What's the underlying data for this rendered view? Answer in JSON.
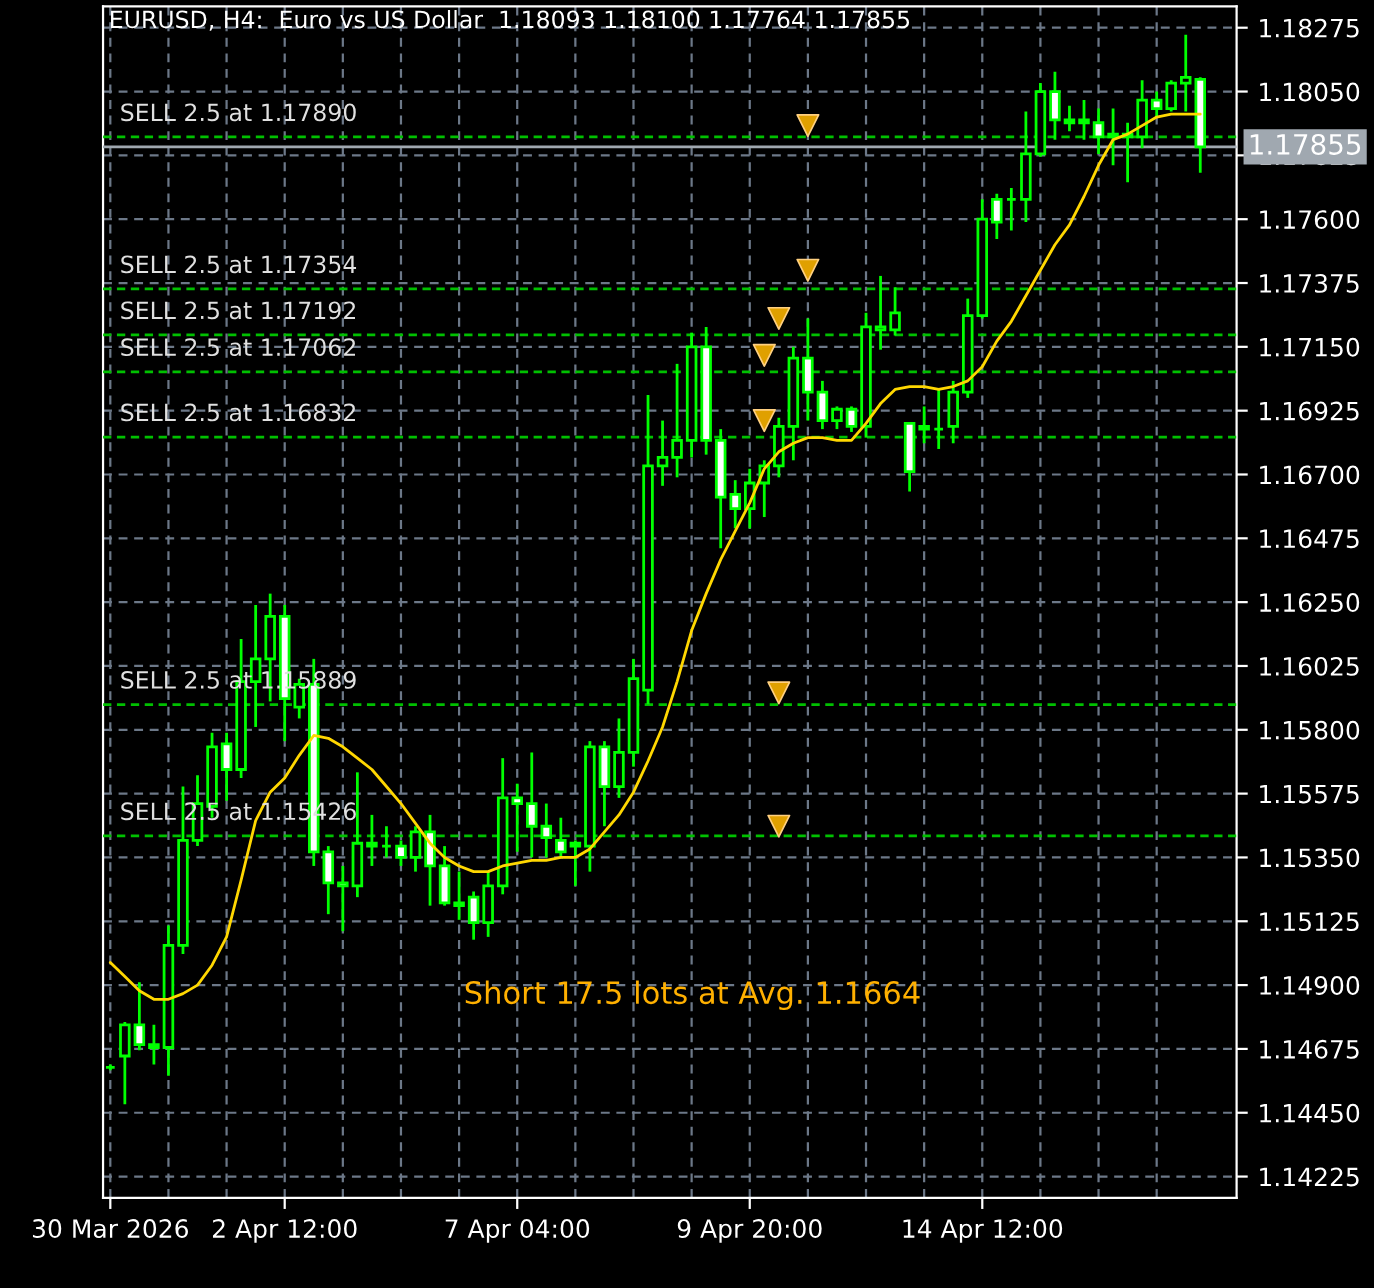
{
  "chart_data": {
    "type": "candlestick",
    "title": "EURUSD, H4:  Euro vs US Dollar  1.18093 1.18100 1.17764 1.17855",
    "categories": [
      "30 Mar 2026",
      null,
      null,
      null,
      null,
      null,
      null,
      null,
      null,
      null,
      null,
      null,
      "2 Apr 12:00",
      null,
      null,
      null,
      null,
      null,
      null,
      null,
      null,
      null,
      null,
      null,
      null,
      null,
      null,
      null,
      "7 Apr 04:00",
      null,
      null,
      null,
      null,
      null,
      null,
      null,
      null,
      null,
      null,
      null,
      null,
      null,
      null,
      null,
      "9 Apr 20:00",
      null,
      null,
      null,
      null,
      null,
      null,
      null,
      null,
      null,
      null,
      null,
      null,
      null,
      null,
      null,
      "14 Apr 12:00",
      null,
      null,
      null,
      null,
      null,
      null,
      null,
      null,
      null,
      null,
      null,
      null,
      null,
      null,
      null
    ],
    "color": "#00ff00",
    "ohlc": [
      [
        1.1461,
        1.1462,
        1.146,
        1.1461
      ],
      [
        1.1465,
        1.1477,
        1.1448,
        1.1476
      ],
      [
        1.1476,
        1.1491,
        1.1467,
        1.1469
      ],
      [
        1.1469,
        1.1476,
        1.1462,
        1.1468
      ],
      [
        1.1468,
        1.1511,
        1.1458,
        1.1504
      ],
      [
        1.1504,
        1.156,
        1.1501,
        1.1541
      ],
      [
        1.1541,
        1.1564,
        1.1539,
        1.1554
      ],
      [
        1.1553,
        1.1579,
        1.1549,
        1.1574
      ],
      [
        1.1575,
        1.1579,
        1.1555,
        1.1566
      ],
      [
        1.1566,
        1.1612,
        1.1563,
        1.1597
      ],
      [
        1.1597,
        1.1624,
        1.1581,
        1.1605
      ],
      [
        1.1605,
        1.1628,
        1.159,
        1.162
      ],
      [
        1.162,
        1.1624,
        1.1576,
        1.1591
      ],
      [
        1.1588,
        1.1598,
        1.1584,
        1.1596
      ],
      [
        1.1596,
        1.1605,
        1.1532,
        1.1537
      ],
      [
        1.1537,
        1.1539,
        1.1515,
        1.1526
      ],
      [
        1.1526,
        1.1532,
        1.1509,
        1.1525
      ],
      [
        1.1525,
        1.1565,
        1.1521,
        1.154
      ],
      [
        1.154,
        1.155,
        1.1532,
        1.1539
      ],
      [
        1.1539,
        1.1546,
        1.1535,
        1.1539
      ],
      [
        1.1539,
        1.1541,
        1.1532,
        1.1535
      ],
      [
        1.1535,
        1.1546,
        1.153,
        1.1544
      ],
      [
        1.1544,
        1.155,
        1.1518,
        1.1532
      ],
      [
        1.1532,
        1.1539,
        1.1518,
        1.1519
      ],
      [
        1.1519,
        1.153,
        1.1513,
        1.1518
      ],
      [
        1.1521,
        1.1523,
        1.1506,
        1.1512
      ],
      [
        1.1512,
        1.153,
        1.1507,
        1.1525
      ],
      [
        1.1525,
        1.157,
        1.1522,
        1.1556
      ],
      [
        1.1556,
        1.1561,
        1.1537,
        1.1554
      ],
      [
        1.1554,
        1.1572,
        1.1535,
        1.1546
      ],
      [
        1.1546,
        1.1554,
        1.1535,
        1.1542
      ],
      [
        1.1541,
        1.1549,
        1.1535,
        1.1537
      ],
      [
        1.1539,
        1.1541,
        1.1525,
        1.154
      ],
      [
        1.1539,
        1.1576,
        1.153,
        1.1574
      ],
      [
        1.1574,
        1.1576,
        1.1546,
        1.156
      ],
      [
        1.156,
        1.1584,
        1.1556,
        1.1572
      ],
      [
        1.1572,
        1.1605,
        1.1567,
        1.1598
      ],
      [
        1.1594,
        1.1698,
        1.1589,
        1.1673
      ],
      [
        1.1673,
        1.1689,
        1.1666,
        1.1676
      ],
      [
        1.1676,
        1.1709,
        1.1669,
        1.1682
      ],
      [
        1.1682,
        1.172,
        1.1676,
        1.1715
      ],
      [
        1.1715,
        1.1722,
        1.1677,
        1.1682
      ],
      [
        1.1682,
        1.1686,
        1.1644,
        1.1662
      ],
      [
        1.1663,
        1.1668,
        1.1651,
        1.1658
      ],
      [
        1.1658,
        1.1672,
        1.1651,
        1.1667
      ],
      [
        1.1667,
        1.1675,
        1.1655,
        1.1673
      ],
      [
        1.1673,
        1.169,
        1.1669,
        1.1687
      ],
      [
        1.1687,
        1.1715,
        1.1675,
        1.1711
      ],
      [
        1.1711,
        1.1725,
        1.1689,
        1.1699
      ],
      [
        1.1699,
        1.1703,
        1.1686,
        1.1689
      ],
      [
        1.1689,
        1.1694,
        1.1686,
        1.1693
      ],
      [
        1.1693,
        1.1694,
        1.1685,
        1.1687
      ],
      [
        1.1687,
        1.1727,
        1.1683,
        1.1722
      ],
      [
        1.1721,
        1.174,
        1.1714,
        1.1722
      ],
      [
        1.1721,
        1.1736,
        1.1719,
        1.1727
      ],
      [
        1.1688,
        1.1688,
        1.1664,
        1.1671
      ],
      [
        1.1687,
        1.1694,
        1.1681,
        1.1686
      ],
      [
        1.1686,
        1.17,
        1.1679,
        1.1686
      ],
      [
        1.1687,
        1.1703,
        1.1681,
        1.1699
      ],
      [
        1.1699,
        1.1732,
        1.1697,
        1.1726
      ],
      [
        1.1726,
        1.1767,
        1.1725,
        1.176
      ],
      [
        1.1767,
        1.1769,
        1.1753,
        1.1759
      ],
      [
        1.1767,
        1.1771,
        1.1756,
        1.1767
      ],
      [
        1.1767,
        1.1798,
        1.1759,
        1.1783
      ],
      [
        1.1783,
        1.1808,
        1.1782,
        1.1805
      ],
      [
        1.1805,
        1.1812,
        1.1788,
        1.1795
      ],
      [
        1.1795,
        1.18,
        1.1791,
        1.1794
      ],
      [
        1.1795,
        1.1802,
        1.1788,
        1.1794
      ],
      [
        1.1794,
        1.1799,
        1.1783,
        1.1789
      ],
      [
        1.179,
        1.1799,
        1.1779,
        1.1789
      ],
      [
        1.1789,
        1.1794,
        1.1773,
        1.179
      ],
      [
        1.1789,
        1.1809,
        1.1785,
        1.1802
      ],
      [
        1.1802,
        1.1805,
        1.1796,
        1.1799
      ],
      [
        1.1799,
        1.1809,
        1.1798,
        1.1808
      ],
      [
        1.1808,
        1.1825,
        1.1798,
        1.181
      ],
      [
        1.18093,
        1.181,
        1.17764,
        1.17855
      ]
    ],
    "series": [
      {
        "type": "line",
        "color": "#ffd700",
        "marker": "none",
        "values": [
          1.1498,
          1.1493,
          1.1488,
          1.1485,
          1.1485,
          1.1487,
          1.149,
          1.1497,
          1.1507,
          1.1527,
          1.1548,
          1.1558,
          1.1563,
          1.1571,
          1.1578,
          1.1577,
          1.1574,
          1.157,
          1.1566,
          1.156,
          1.1554,
          1.1547,
          1.154,
          1.1535,
          1.1532,
          1.153,
          1.153,
          1.1532,
          1.1533,
          1.1534,
          1.1534,
          1.1535,
          1.1535,
          1.1538,
          1.1544,
          1.155,
          1.1558,
          1.1569,
          1.1581,
          1.1597,
          1.1615,
          1.1628,
          1.164,
          1.165,
          1.166,
          1.1672,
          1.1678,
          1.1681,
          1.1683,
          1.1683,
          1.1682,
          1.1682,
          1.1688,
          1.1695,
          1.17,
          1.1701,
          1.1701,
          1.17,
          1.1701,
          1.1703,
          1.1708,
          1.1717,
          1.1724,
          1.1733,
          1.1742,
          1.1751,
          1.1758,
          1.1768,
          1.1779,
          1.1788,
          1.179,
          1.1793,
          1.1796,
          1.1797,
          1.1797,
          1.1797
        ]
      },
      {
        "type": "scatter",
        "color": "#e0a000",
        "marker": "triangle",
        "values": [
          null,
          null,
          null,
          null,
          null,
          null,
          null,
          null,
          null,
          null,
          null,
          null,
          null,
          null,
          null,
          null,
          null,
          null,
          null,
          null,
          null,
          null,
          null,
          null,
          null,
          null,
          null,
          null,
          null,
          null,
          null,
          null,
          null,
          null,
          null,
          null,
          null,
          null,
          null,
          null,
          null,
          null,
          null,
          null,
          null,
          1.1712,
          1.1725,
          null,
          1.1793,
          null,
          null,
          null,
          null,
          null,
          null,
          null,
          null,
          null,
          null,
          null,
          null,
          null,
          null,
          null,
          null,
          null,
          null,
          null,
          null,
          null,
          null,
          null,
          null,
          null,
          null,
          null
        ]
      },
      {
        "type": "scatter",
        "color": "#e0a000",
        "marker": "triangle",
        "values": [
          null,
          null,
          null,
          null,
          null,
          null,
          null,
          null,
          null,
          null,
          null,
          null,
          null,
          null,
          null,
          null,
          null,
          null,
          null,
          null,
          null,
          null,
          null,
          null,
          null,
          null,
          null,
          null,
          null,
          null,
          null,
          null,
          null,
          null,
          null,
          null,
          null,
          null,
          null,
          null,
          null,
          null,
          null,
          null,
          null,
          1.1689,
          1.1593,
          null,
          1.1742,
          null,
          null,
          null,
          null,
          null,
          null,
          null,
          null,
          null,
          null,
          null,
          null,
          null,
          null,
          null,
          null,
          null,
          null,
          null,
          null,
          null,
          null,
          null,
          null,
          null,
          null,
          null
        ]
      },
      {
        "type": "scatter",
        "color": "#e0a000",
        "marker": "triangle",
        "values": [
          null,
          null,
          null,
          null,
          null,
          null,
          null,
          null,
          null,
          null,
          null,
          null,
          null,
          null,
          null,
          null,
          null,
          null,
          null,
          null,
          null,
          null,
          null,
          null,
          null,
          null,
          null,
          null,
          null,
          null,
          null,
          null,
          null,
          null,
          null,
          null,
          null,
          null,
          null,
          null,
          null,
          null,
          null,
          null,
          null,
          null,
          1.1546,
          null,
          null,
          null,
          null,
          null,
          null,
          null,
          null,
          null,
          null,
          null,
          null,
          null,
          null,
          null,
          null,
          null,
          null,
          null,
          null,
          null,
          null,
          null,
          null,
          null,
          null,
          null,
          null,
          null
        ]
      }
    ],
    "ref_lines": [
      {
        "axis": "y",
        "value": 1.1789,
        "label": "SELL 2.5 at 1.17890",
        "color": "#00c000",
        "line_style": "dashed"
      },
      {
        "axis": "y",
        "value": 1.17354,
        "label": "SELL 2.5 at 1.17354",
        "color": "#00c000",
        "line_style": "dashed"
      },
      {
        "axis": "y",
        "value": 1.17192,
        "label": "SELL 2.5 at 1.17192",
        "color": "#00c000",
        "line_style": "dashed"
      },
      {
        "axis": "y",
        "value": 1.17062,
        "label": "SELL 2.5 at 1.17062",
        "color": "#00c000",
        "line_style": "dashed"
      },
      {
        "axis": "y",
        "value": 1.16832,
        "label": "SELL 2.5 at 1.16832",
        "color": "#00c000",
        "line_style": "dashed"
      },
      {
        "axis": "y",
        "value": 1.15889,
        "label": "SELL 2.5 at 1.15889",
        "color": "#00c000",
        "line_style": "dashed"
      },
      {
        "axis": "y",
        "value": 1.15426,
        "label": "SELL 2.5 at 1.15426",
        "color": "#00c000",
        "line_style": "dashed"
      },
      {
        "axis": "y",
        "value": 1.17855,
        "label": "1.17855",
        "color": "#a0a8b0",
        "line_style": "solid"
      }
    ],
    "annotations": [
      "Short 17.5 lots at Avg. 1.1664"
    ],
    "ylim": [
      1.1415,
      1.1835
    ],
    "yticks": [
      1.14225,
      {
        "value": 1.1445,
        "label": "1.14450"
      },
      1.14675,
      {
        "value": 1.149,
        "label": "1.14900"
      },
      1.15125,
      {
        "value": 1.1535,
        "label": "1.15350"
      },
      1.15575,
      {
        "value": 1.158,
        "label": "1.15800"
      },
      1.16025,
      {
        "value": 1.1625,
        "label": "1.16250"
      },
      1.16475,
      {
        "value": 1.167,
        "label": "1.16700"
      },
      1.16925,
      {
        "value": 1.1715,
        "label": "1.17150"
      },
      1.17375,
      {
        "value": 1.176,
        "label": "1.17600"
      },
      1.17825,
      {
        "value": 1.1805,
        "label": "1.18050"
      },
      1.18275
    ],
    "grid": true,
    "legend": false
  }
}
